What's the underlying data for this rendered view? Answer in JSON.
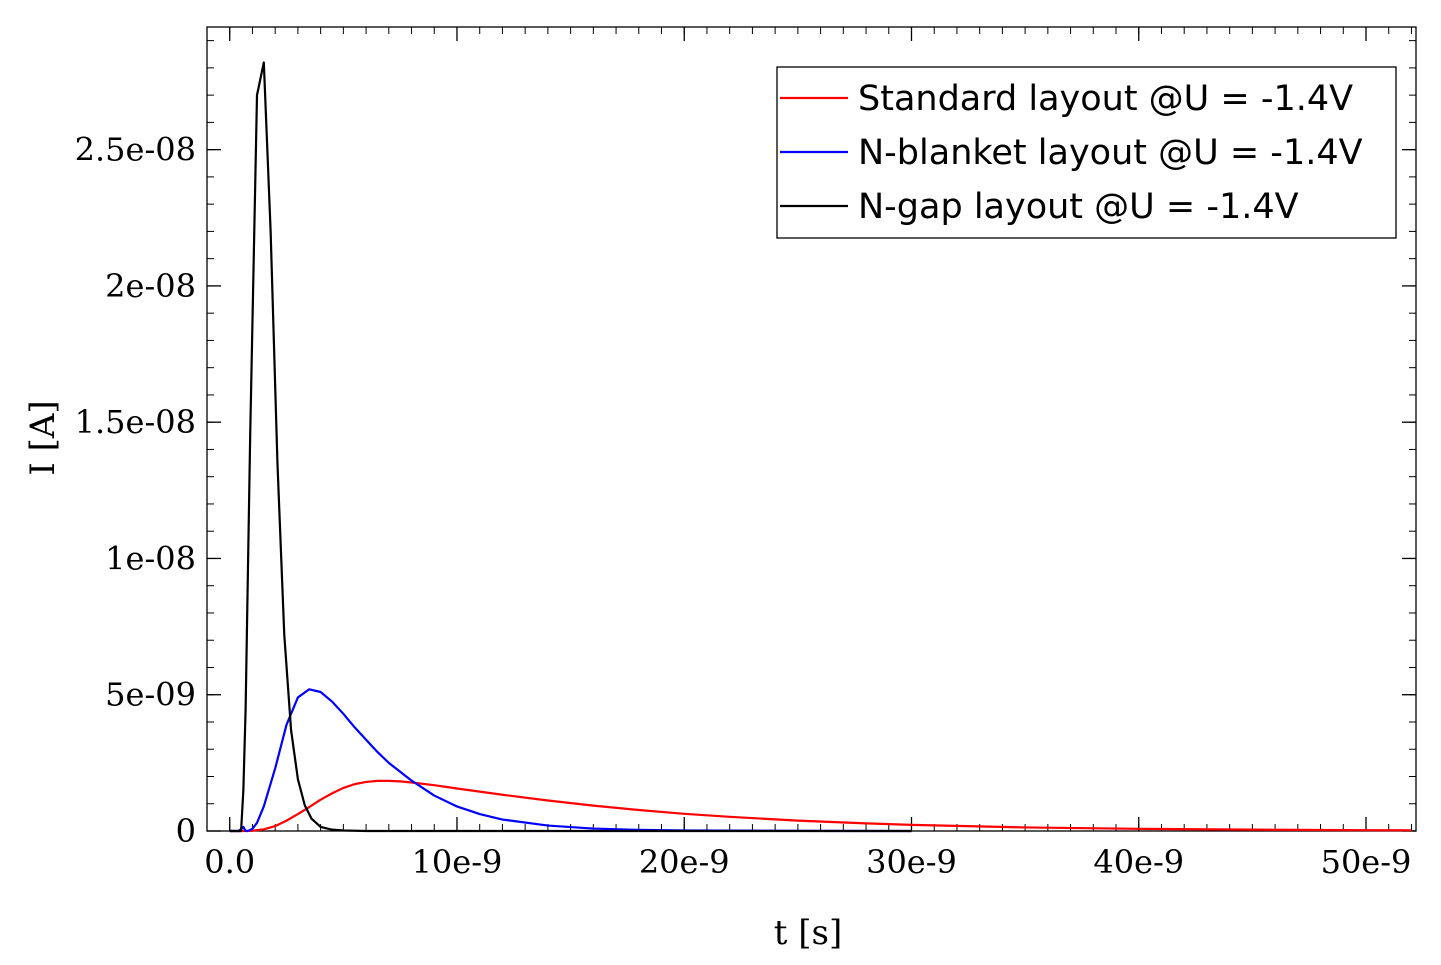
{
  "chart_data": {
    "type": "line",
    "title": "",
    "xlabel": "t [s]",
    "ylabel": "I [A]",
    "xlim": [
      -1e-09,
      5.22e-08
    ],
    "ylim": [
      0,
      2.95e-08
    ],
    "grid": false,
    "legend_position": "top-right",
    "x_ticks": [
      {
        "value": 0,
        "label": "0.0"
      },
      {
        "value": 1e-08,
        "label": "10e-9"
      },
      {
        "value": 2e-08,
        "label": "20e-9"
      },
      {
        "value": 3e-08,
        "label": "30e-9"
      },
      {
        "value": 4e-08,
        "label": "40e-9"
      },
      {
        "value": 5e-08,
        "label": "50e-9"
      }
    ],
    "y_ticks": [
      {
        "value": 0,
        "label": "0"
      },
      {
        "value": 5e-09,
        "label": "5e-09"
      },
      {
        "value": 1e-08,
        "label": "1e-08"
      },
      {
        "value": 1.5e-08,
        "label": "1.5e-08"
      },
      {
        "value": 2e-08,
        "label": "2e-08"
      },
      {
        "value": 2.5e-08,
        "label": "2.5e-08"
      }
    ],
    "series": [
      {
        "name": "Standard layout @U = -1.4V",
        "color": "#ff0000",
        "x": [
          0,
          5e-10,
          1e-09,
          1.5e-09,
          2e-09,
          2.5e-09,
          3e-09,
          3.5e-09,
          4e-09,
          4.5e-09,
          5e-09,
          5.5e-09,
          6e-09,
          6.5e-09,
          7e-09,
          7.5e-09,
          8e-09,
          9e-09,
          1e-08,
          1.2e-08,
          1.4e-08,
          1.6e-08,
          1.8e-08,
          2e-08,
          2.2e-08,
          2.5e-08,
          2.8e-08,
          3e-08,
          3.5e-08,
          4e-08,
          4.5e-08,
          5e-08,
          5.2e-08
        ],
        "y": [
          0,
          0,
          1e-11,
          6e-11,
          1.8e-10,
          3.8e-10,
          6.2e-10,
          8.8e-10,
          1.15e-09,
          1.38e-09,
          1.58e-09,
          1.72e-09,
          1.8e-09,
          1.84e-09,
          1.84e-09,
          1.82e-09,
          1.78e-09,
          1.68e-09,
          1.56e-09,
          1.33e-09,
          1.12e-09,
          9.3e-10,
          7.7e-10,
          6.3e-10,
          5.2e-10,
          3.8e-10,
          2.8e-10,
          2.25e-10,
          1.3e-10,
          8e-11,
          5e-11,
          3e-11,
          2.5e-11
        ]
      },
      {
        "name": "N-blanket layout @U = -1.4V",
        "color": "#0000ff",
        "x": [
          0,
          4e-10,
          6e-10,
          7e-10,
          8e-10,
          1e-09,
          1.2e-09,
          1.5e-09,
          2e-09,
          2.5e-09,
          3e-09,
          3.5e-09,
          4e-09,
          4.5e-09,
          5e-09,
          5.5e-09,
          6e-09,
          6.5e-09,
          7e-09,
          8e-09,
          9e-09,
          1e-08,
          1.1e-08,
          1.2e-08,
          1.4e-08,
          1.6e-08,
          1.8e-08,
          2e-08,
          2.5e-08,
          3e-08
        ],
        "y": [
          0,
          0,
          1.5e-10,
          0,
          0,
          8e-11,
          3e-10,
          9e-10,
          2.3e-09,
          3.9e-09,
          4.9e-09,
          5.2e-09,
          5.1e-09,
          4.75e-09,
          4.3e-09,
          3.8e-09,
          3.35e-09,
          2.9e-09,
          2.5e-09,
          1.85e-09,
          1.3e-09,
          9e-10,
          6.2e-10,
          4.2e-10,
          2e-10,
          9e-11,
          4e-11,
          2e-11,
          4e-12,
          0
        ]
      },
      {
        "name": "N-gap layout @U = -1.4V",
        "color": "#000000",
        "x": [
          0,
          5e-10,
          6e-10,
          7e-10,
          9e-10,
          1.2e-09,
          1.5e-09,
          1.8e-09,
          2.1e-09,
          2.4e-09,
          2.7e-09,
          3e-09,
          3.3e-09,
          3.6e-09,
          4e-09,
          4.5e-09,
          5e-09,
          6e-09,
          8e-09,
          1e-08,
          1.5e-08,
          2e-08,
          2.5e-08,
          3e-08
        ],
        "y": [
          0,
          0,
          1.5e-09,
          4.5e-09,
          1.45e-08,
          2.7e-08,
          2.82e-08,
          2.2e-08,
          1.35e-08,
          7.2e-09,
          3.7e-09,
          1.9e-09,
          9.5e-10,
          4.5e-10,
          1.5e-10,
          5e-11,
          2e-11,
          0,
          0,
          0,
          0,
          0,
          0,
          0
        ]
      }
    ]
  }
}
